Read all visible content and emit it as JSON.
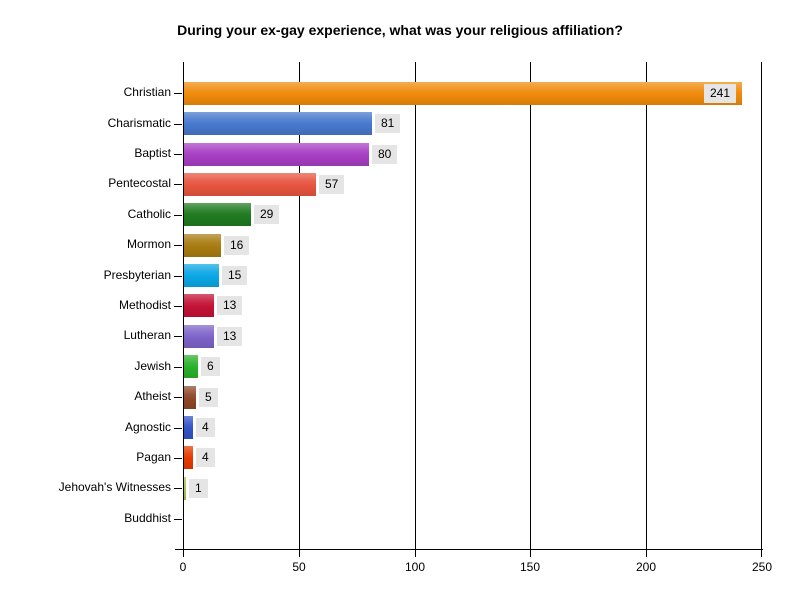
{
  "title": "During your ex-gay experience, what was your religious affiliation?",
  "chart_data": {
    "type": "bar",
    "orientation": "horizontal",
    "title": "During your ex-gay experience, what was your religious affiliation?",
    "categories": [
      "Christian",
      "Charismatic",
      "Baptist",
      "Pentecostal",
      "Catholic",
      "Mormon",
      "Presbyterian",
      "Methodist",
      "Lutheran",
      "Jewish",
      "Atheist",
      "Agnostic",
      "Pagan",
      "Jehovah's Witnesses",
      "Buddhist"
    ],
    "values": [
      241,
      81,
      80,
      57,
      29,
      16,
      15,
      13,
      13,
      6,
      5,
      4,
      4,
      1,
      0
    ],
    "bar_colors": [
      "#EF8A0A",
      "#4678CC",
      "#A73EC3",
      "#E6543E",
      "#1F7A1F",
      "#A87B10",
      "#0AA6E4",
      "#C41236",
      "#7D63C8",
      "#2AB02A",
      "#8F4728",
      "#3354C8",
      "#E63900",
      "#A9C24F",
      null
    ],
    "xlabel": "",
    "ylabel": "",
    "xlim": [
      0,
      250
    ],
    "x_ticks": [
      "0",
      "50",
      "100",
      "150",
      "200",
      "250"
    ],
    "grid": "vertical",
    "value_labels_shown": true,
    "value_label_background": "#E5E5E5",
    "axis_color": "#000000",
    "text_color": "#000000",
    "background_color": "#FFFFFF"
  }
}
